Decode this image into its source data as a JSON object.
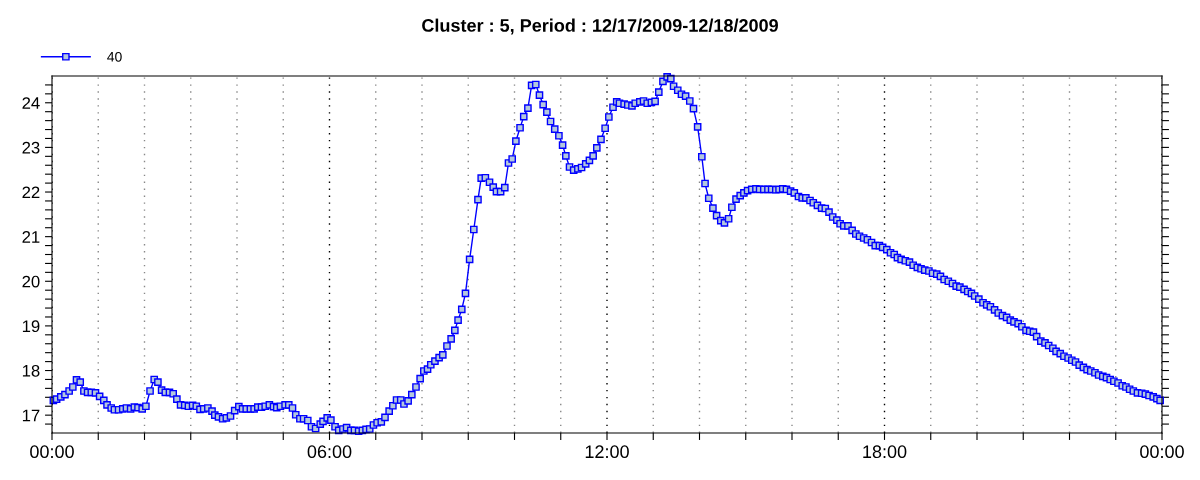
{
  "chart_data": {
    "type": "line",
    "title": "Cluster : 5, Period : 12/17/2009-12/18/2009",
    "legend": "top left",
    "marker": "square",
    "line_style": "solid",
    "grid": "x",
    "xlim": [
      0,
      24
    ],
    "ylim": [
      16.6,
      24.6
    ],
    "xticks": [
      {
        "value": 0,
        "label": "00:00"
      },
      {
        "value": 1,
        "label": null
      },
      {
        "value": 2,
        "label": null
      },
      {
        "value": 3,
        "label": null
      },
      {
        "value": 4,
        "label": null
      },
      {
        "value": 5,
        "label": null
      },
      {
        "value": 6,
        "label": "06:00"
      },
      {
        "value": 7,
        "label": null
      },
      {
        "value": 8,
        "label": null
      },
      {
        "value": 9,
        "label": null
      },
      {
        "value": 10,
        "label": null
      },
      {
        "value": 11,
        "label": null
      },
      {
        "value": 12,
        "label": "12:00"
      },
      {
        "value": 13,
        "label": null
      },
      {
        "value": 14,
        "label": null
      },
      {
        "value": 15,
        "label": null
      },
      {
        "value": 16,
        "label": null
      },
      {
        "value": 17,
        "label": null
      },
      {
        "value": 18,
        "label": "18:00"
      },
      {
        "value": 19,
        "label": null
      },
      {
        "value": 20,
        "label": null
      },
      {
        "value": 21,
        "label": null
      },
      {
        "value": 22,
        "label": null
      },
      {
        "value": 23,
        "label": null
      },
      {
        "value": 24,
        "label": "00:00"
      }
    ],
    "yticks": [
      {
        "value": 16.8,
        "label": null
      },
      17,
      {
        "value": 17.2,
        "label": null
      },
      {
        "value": 17.4,
        "label": null
      },
      {
        "value": 17.6,
        "label": null
      },
      {
        "value": 17.8,
        "label": null
      },
      18,
      {
        "value": 18.2,
        "label": null
      },
      {
        "value": 18.4,
        "label": null
      },
      {
        "value": 18.6,
        "label": null
      },
      {
        "value": 18.8,
        "label": null
      },
      19,
      {
        "value": 19.2,
        "label": null
      },
      {
        "value": 19.4,
        "label": null
      },
      {
        "value": 19.6,
        "label": null
      },
      {
        "value": 19.8,
        "label": null
      },
      20,
      {
        "value": 20.2,
        "label": null
      },
      {
        "value": 20.4,
        "label": null
      },
      {
        "value": 20.6,
        "label": null
      },
      {
        "value": 20.8,
        "label": null
      },
      21,
      {
        "value": 21.2,
        "label": null
      },
      {
        "value": 21.4,
        "label": null
      },
      {
        "value": 21.6,
        "label": null
      },
      {
        "value": 21.8,
        "label": null
      },
      22,
      {
        "value": 22.2,
        "label": null
      },
      {
        "value": 22.4,
        "label": null
      },
      {
        "value": 22.6,
        "label": null
      },
      {
        "value": 22.8,
        "label": null
      },
      23,
      {
        "value": 23.2,
        "label": null
      },
      {
        "value": 23.4,
        "label": null
      },
      {
        "value": 23.6,
        "label": null
      },
      {
        "value": 23.8,
        "label": null
      },
      24,
      {
        "value": 24.2,
        "label": null
      },
      {
        "value": 24.4,
        "label": null
      }
    ],
    "series": [
      {
        "name": "40",
        "color": "#0000ff",
        "x": [
          0.03,
          0.1,
          0.19,
          0.28,
          0.37,
          0.45,
          0.53,
          0.61,
          0.69,
          0.77,
          0.85,
          0.94,
          1.03,
          1.12,
          1.19,
          1.28,
          1.35,
          1.44,
          1.53,
          1.61,
          1.7,
          1.78,
          1.86,
          1.95,
          2.03,
          2.12,
          2.21,
          2.29,
          2.37,
          2.45,
          2.54,
          2.62,
          2.7,
          2.78,
          2.87,
          2.95,
          3.04,
          3.12,
          3.2,
          3.28,
          3.37,
          3.46,
          3.52,
          3.6,
          3.69,
          3.77,
          3.86,
          3.95,
          4.04,
          4.12,
          4.2,
          4.29,
          4.37,
          4.45,
          4.53,
          4.61,
          4.7,
          4.79,
          4.86,
          4.94,
          5.04,
          5.12,
          5.2,
          5.27,
          5.36,
          5.44,
          5.53,
          5.61,
          5.7,
          5.8,
          5.86,
          5.95,
          6.03,
          6.12,
          6.2,
          6.29,
          6.37,
          6.46,
          6.54,
          6.63,
          6.71,
          6.79,
          6.87,
          6.95,
          7.03,
          7.12,
          7.2,
          7.29,
          7.37,
          7.45,
          7.54,
          7.61,
          7.7,
          7.78,
          7.87,
          7.96,
          8.04,
          8.12,
          8.19,
          8.28,
          8.37,
          8.45,
          8.54,
          8.63,
          8.71,
          8.78,
          8.86,
          8.94,
          9.03,
          9.12,
          9.21,
          9.28,
          9.37,
          9.46,
          9.54,
          9.61,
          9.7,
          9.79,
          9.87,
          9.95,
          10.03,
          10.12,
          10.2,
          10.29,
          10.37,
          10.46,
          10.54,
          10.62,
          10.7,
          10.78,
          10.87,
          10.96,
          11.04,
          11.11,
          11.19,
          11.28,
          11.37,
          11.45,
          11.54,
          11.62,
          11.7,
          11.78,
          11.87,
          11.96,
          12.04,
          12.13,
          12.21,
          12.27,
          12.37,
          12.45,
          12.54,
          12.61,
          12.71,
          12.79,
          12.87,
          12.96,
          13.04,
          13.12,
          13.21,
          13.3,
          13.38,
          13.44,
          13.53,
          13.61,
          13.7,
          13.79,
          13.87,
          13.96,
          14.05,
          14.12,
          14.2,
          14.29,
          14.37,
          14.46,
          14.54,
          14.63,
          14.7,
          14.79,
          14.88,
          14.96,
          15.04,
          15.13,
          15.22,
          15.3,
          15.39,
          15.48,
          15.56,
          15.65,
          15.72,
          15.8,
          15.88,
          15.97,
          16.05,
          16.14,
          16.22,
          16.3,
          16.39,
          16.46,
          16.55,
          16.64,
          16.72,
          16.8,
          16.88,
          16.97,
          17.04,
          17.12,
          17.21,
          17.3,
          17.38,
          17.46,
          17.55,
          17.63,
          17.72,
          17.8,
          17.89,
          17.96,
          18.05,
          18.13,
          18.21,
          18.28,
          18.36,
          18.45,
          18.54,
          18.62,
          18.71,
          18.79,
          18.87,
          18.96,
          19.04,
          19.13,
          19.21,
          19.29,
          19.38,
          19.47,
          19.55,
          19.63,
          19.72,
          19.8,
          19.88,
          19.95,
          20.04,
          20.13,
          20.21,
          20.29,
          20.38,
          20.46,
          20.55,
          20.64,
          20.72,
          20.8,
          20.89,
          20.97,
          21.06,
          21.14,
          21.22,
          21.29,
          21.38,
          21.47,
          21.55,
          21.64,
          21.71,
          21.8,
          21.88,
          21.97,
          22.05,
          22.13,
          22.21,
          22.3,
          22.38,
          22.46,
          22.55,
          22.63,
          22.72,
          22.8,
          22.88,
          22.96,
          23.05,
          23.14,
          23.22,
          23.3,
          23.38,
          23.47,
          23.56,
          23.64,
          23.72,
          23.81,
          23.89,
          23.96
        ],
        "values": [
          17.33,
          17.36,
          17.41,
          17.46,
          17.54,
          17.63,
          17.79,
          17.74,
          17.54,
          17.51,
          17.51,
          17.5,
          17.42,
          17.33,
          17.23,
          17.16,
          17.12,
          17.12,
          17.14,
          17.16,
          17.14,
          17.18,
          17.17,
          17.14,
          17.2,
          17.54,
          17.8,
          17.74,
          17.56,
          17.51,
          17.51,
          17.48,
          17.36,
          17.23,
          17.22,
          17.2,
          17.22,
          17.2,
          17.13,
          17.14,
          17.16,
          17.09,
          17.0,
          16.96,
          16.92,
          16.94,
          16.98,
          17.1,
          17.19,
          17.14,
          17.14,
          17.14,
          17.14,
          17.18,
          17.18,
          17.2,
          17.23,
          17.19,
          17.17,
          17.2,
          17.23,
          17.23,
          17.16,
          17.01,
          16.92,
          16.92,
          16.88,
          16.74,
          16.7,
          16.8,
          16.86,
          16.94,
          16.89,
          16.74,
          16.66,
          16.69,
          16.72,
          16.66,
          16.66,
          16.64,
          16.66,
          16.68,
          16.69,
          16.78,
          16.83,
          16.85,
          16.95,
          17.09,
          17.21,
          17.34,
          17.34,
          17.25,
          17.32,
          17.46,
          17.63,
          17.82,
          17.99,
          18.03,
          18.13,
          18.21,
          18.29,
          18.35,
          18.55,
          18.71,
          18.9,
          19.13,
          19.37,
          19.73,
          20.49,
          21.16,
          21.83,
          22.31,
          22.32,
          22.22,
          22.11,
          22.01,
          22.01,
          22.1,
          22.65,
          22.74,
          23.14,
          23.44,
          23.69,
          23.88,
          24.39,
          24.41,
          24.17,
          23.96,
          23.79,
          23.58,
          23.41,
          23.26,
          23.05,
          22.81,
          22.56,
          22.49,
          22.52,
          22.55,
          22.63,
          22.71,
          22.81,
          22.99,
          23.18,
          23.43,
          23.68,
          23.9,
          24.02,
          23.99,
          23.97,
          23.95,
          23.93,
          23.99,
          24.02,
          24.04,
          23.99,
          24.01,
          24.03,
          24.24,
          24.48,
          24.58,
          24.54,
          24.37,
          24.28,
          24.19,
          24.15,
          24.04,
          23.87,
          23.46,
          22.79,
          22.19,
          21.86,
          21.64,
          21.47,
          21.36,
          21.31,
          21.4,
          21.66,
          21.84,
          21.92,
          21.98,
          22.03,
          22.06,
          22.07,
          22.06,
          22.06,
          22.06,
          22.06,
          22.05,
          22.06,
          22.07,
          22.06,
          22.02,
          21.98,
          21.9,
          21.87,
          21.87,
          21.81,
          21.76,
          21.7,
          21.64,
          21.63,
          21.55,
          21.44,
          21.37,
          21.29,
          21.24,
          21.24,
          21.14,
          21.06,
          21.01,
          20.97,
          20.93,
          20.87,
          20.8,
          20.8,
          20.76,
          20.71,
          20.64,
          20.6,
          20.53,
          20.49,
          20.46,
          20.43,
          20.36,
          20.31,
          20.28,
          20.25,
          20.23,
          20.18,
          20.16,
          20.11,
          20.04,
          20.0,
          19.95,
          19.89,
          19.87,
          19.82,
          19.77,
          19.73,
          19.67,
          19.6,
          19.52,
          19.47,
          19.43,
          19.36,
          19.29,
          19.23,
          19.19,
          19.13,
          19.09,
          19.05,
          18.98,
          18.9,
          18.88,
          18.86,
          18.76,
          18.66,
          18.62,
          18.56,
          18.5,
          18.43,
          18.38,
          18.32,
          18.28,
          18.23,
          18.19,
          18.12,
          18.07,
          18.02,
          17.99,
          17.95,
          17.9,
          17.87,
          17.84,
          17.8,
          17.76,
          17.72,
          17.66,
          17.63,
          17.58,
          17.54,
          17.5,
          17.49,
          17.47,
          17.44,
          17.41,
          17.37,
          17.33
        ]
      }
    ]
  }
}
